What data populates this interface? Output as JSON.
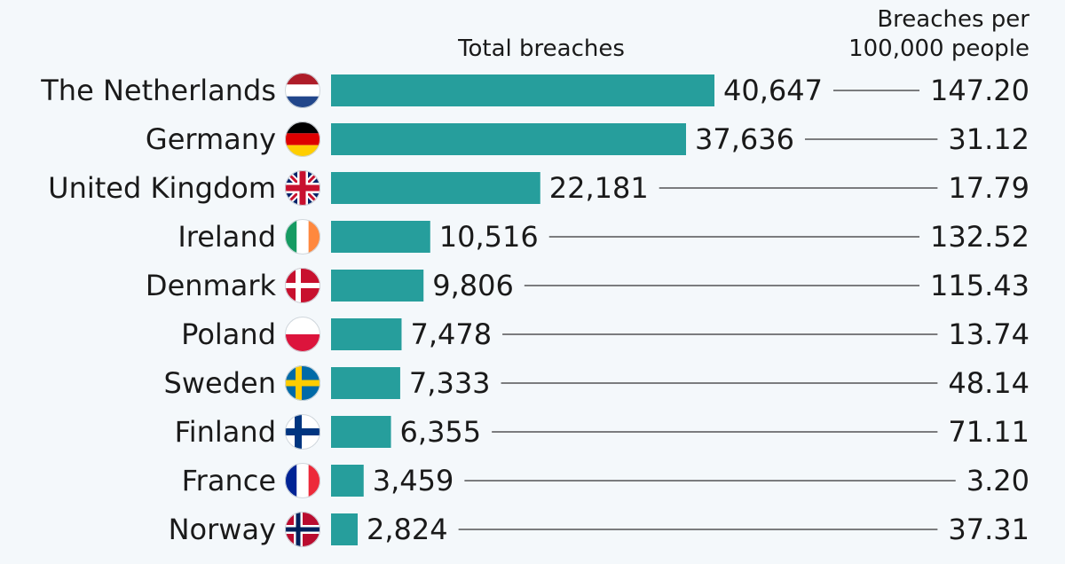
{
  "chart_data": {
    "type": "bar",
    "orientation": "horizontal",
    "column_headers": {
      "total": "Total breaches",
      "rate_line1": "Breaches per",
      "rate_line2": "100,000 people"
    },
    "categories": [
      "The Netherlands",
      "Germany",
      "United Kingdom",
      "Ireland",
      "Denmark",
      "Poland",
      "Sweden",
      "Finland",
      "France",
      "Norway"
    ],
    "flags": [
      "netherlands-flag-icon",
      "germany-flag-icon",
      "united-kingdom-flag-icon",
      "ireland-flag-icon",
      "denmark-flag-icon",
      "poland-flag-icon",
      "sweden-flag-icon",
      "finland-flag-icon",
      "france-flag-icon",
      "norway-flag-icon"
    ],
    "values": [
      40647,
      37636,
      22181,
      10516,
      9806,
      7478,
      7333,
      6355,
      3459,
      2824
    ],
    "value_labels": [
      "40,647",
      "37,636",
      "22,181",
      "10,516",
      "9,806",
      "7,478",
      "7,333",
      "6,355",
      "3,459",
      "2,824"
    ],
    "rates": [
      147.2,
      31.12,
      17.79,
      132.52,
      115.43,
      13.74,
      48.14,
      71.11,
      3.2,
      37.31
    ],
    "rate_labels": [
      "147.20",
      "31.12",
      "17.79",
      "132.52",
      "115.43",
      "13.74",
      "48.14",
      "71.11",
      "3.20",
      "37.31"
    ],
    "xlim": [
      0,
      40647
    ],
    "grid": false,
    "legend": "none",
    "bar_color": "#269e9c"
  }
}
